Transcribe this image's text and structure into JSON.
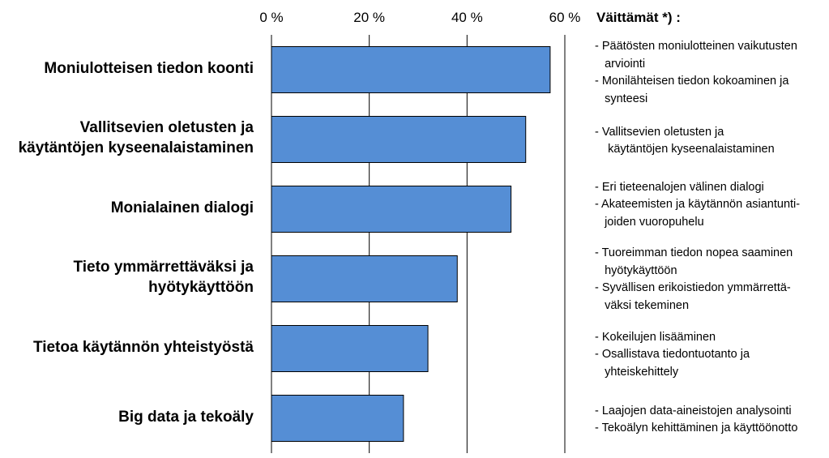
{
  "chart_data": {
    "type": "bar",
    "orientation": "horizontal",
    "title": "",
    "xlabel": "",
    "ylabel": "",
    "xlim": [
      0,
      60
    ],
    "ticks": [
      0,
      20,
      40,
      60
    ],
    "tick_labels": [
      "0 %",
      "20 %",
      "40 %",
      "60 %"
    ],
    "grid": true,
    "bar_color": "#558ed5",
    "categories": [
      [
        "Moniulotteisen tiedon koonti"
      ],
      [
        "Vallitsevien oletusten ja",
        "käytäntöjen kyseenalaistaminen"
      ],
      [
        "Monialainen dialogi"
      ],
      [
        "Tieto ymmärrettäväksi ja",
        "hyötykäyttöön"
      ],
      [
        "Tietoa käytännön yhteistyöstä"
      ],
      [
        "Big data ja tekoäly"
      ]
    ],
    "values": [
      57,
      52,
      49,
      38,
      32,
      27
    ]
  },
  "legend": {
    "title": "Väittämät *) :",
    "groups": [
      [
        "- Päätösten moniulotteinen vaikutusten",
        "   arviointi",
        "- Monilähteisen tiedon kokoaminen ja",
        "   synteesi"
      ],
      [
        "- Vallitsevien oletusten ja",
        "    käytäntöjen kyseenalaistaminen"
      ],
      [
        "- Eri tieteenalojen välinen dialogi",
        "- Akateemisten ja käytännön asiantunti-",
        "   joiden vuoropuhelu"
      ],
      [
        "- Tuoreimman tiedon nopea saaminen",
        "   hyötykäyttöön",
        "- Syvällisen erikoistiedon ymmärrettä-",
        "   väksi tekeminen"
      ],
      [
        "- Kokeilujen lisääminen",
        "- Osallistava tiedontuotanto ja",
        "   yhteiskehittely"
      ],
      [
        "- Laajojen data-aineistojen analysointi",
        "- Tekoälyn kehittäminen ja käyttöönotto"
      ]
    ]
  }
}
